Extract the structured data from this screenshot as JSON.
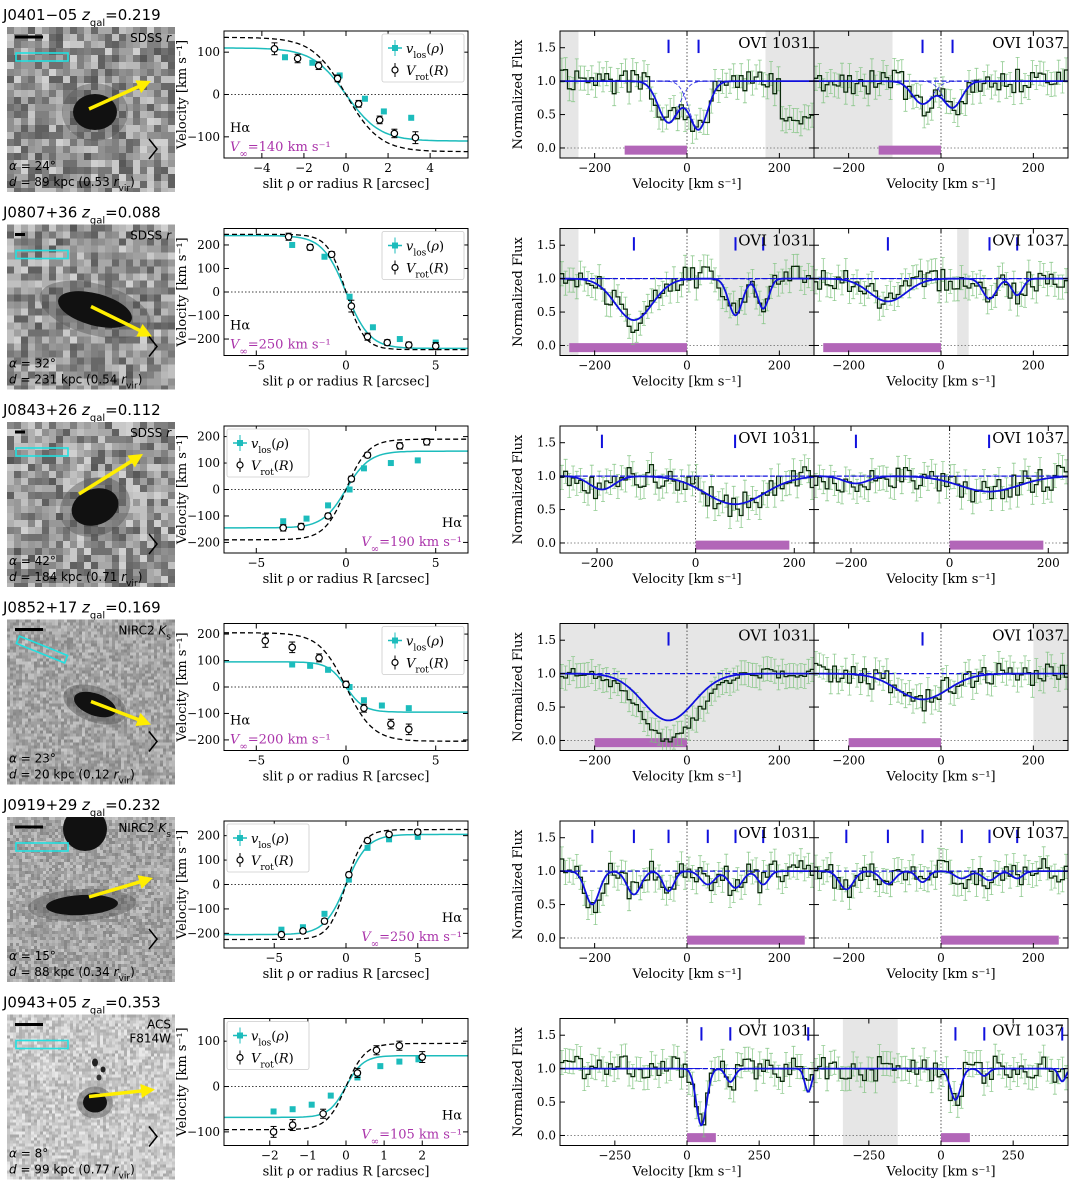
{
  "chart_data": {
    "type": "multi-panel",
    "columns": {
      "rotation_xlabel": "slit ρ or radius R [arcsec]",
      "rotation_ylabel": "Velocity [km s⁻¹]",
      "spectrum_xlabel": "Velocity [km s⁻¹]",
      "spectrum_ylabel": "Normalized Flux",
      "legend_vlos": "v_los(ρ)",
      "legend_vrot": "V_rot(R)",
      "line_label": "Hα",
      "ovi1031": "OVI 1031",
      "ovi1037": "OVI 1037"
    },
    "colors": {
      "vlos": "#1cbcbc",
      "vrot": "#000000",
      "vinf_text": "#aa33aa",
      "model": "#1010dd",
      "data_step": "#0b2a0b",
      "errorbar": "#7cc27c",
      "gray_region": "#dddddd",
      "magenta_bar": "#b266b8",
      "arrow": "#ffee00",
      "slit_box": "#22e0e0"
    },
    "rows": [
      {
        "name": "J0401−05",
        "zgal": "0.219",
        "instrument": "SDSS r",
        "alpha": "24°",
        "d": "89 kpc (0.53 r_vir)",
        "vinf": "140 km s⁻¹",
        "image_type": "sdss",
        "rot": {
          "xlim": [
            -5.8,
            5.8
          ],
          "ylim": [
            -150,
            150
          ],
          "xticks": [
            -4,
            -2,
            0,
            2,
            4
          ],
          "yticks": [
            -100,
            0,
            100
          ],
          "vlos": {
            "x": [
              -2.9,
              -1.6,
              -0.3,
              0.9,
              1.8,
              3.1
            ],
            "y": [
              88,
              75,
              45,
              -10,
              -40,
              -55
            ]
          },
          "vrot": {
            "x": [
              -3.4,
              -2.3,
              -1.3,
              -0.4,
              0.6,
              1.6,
              2.3,
              3.3
            ],
            "y": [
              108,
              85,
              68,
              38,
              -22,
              -60,
              -92,
              -102
            ],
            "err": [
              14,
              10,
              9,
              8,
              8,
              9,
              10,
              14
            ]
          },
          "model_vlos": {
            "v0": 110,
            "r0": 1.6,
            "sign": -1
          },
          "model_vrot": {
            "v0": 135,
            "r0": 1.6,
            "sign": -1
          },
          "legend_pos": "top-right",
          "label_pos": "bottom-left"
        },
        "spec": {
          "xlim": [
            -275,
            275
          ],
          "xticks": [
            -200,
            0,
            200
          ],
          "ylim": [
            -0.15,
            1.75
          ],
          "gray1031": [
            [
              -275,
              -235
            ],
            [
              170,
              275
            ]
          ],
          "gray1037": [
            [
              -275,
              -105
            ]
          ],
          "bar": [
            -135,
            0
          ],
          "ticks": [
            -40,
            25
          ],
          "components": [
            {
              "v": -40,
              "depth": 0.62,
              "sigma": 22
            },
            {
              "v": 25,
              "depth": 0.72,
              "sigma": 20
            }
          ]
        }
      },
      {
        "name": "J0807+36",
        "zgal": "0.088",
        "instrument": "SDSS r",
        "alpha": "32°",
        "d": "231 kpc (0.54 r_vir)",
        "vinf": "250 km s⁻¹",
        "image_type": "sdss",
        "rot": {
          "xlim": [
            -6.8,
            6.8
          ],
          "ylim": [
            -270,
            270
          ],
          "xticks": [
            -5,
            0,
            5
          ],
          "yticks": [
            -200,
            -100,
            0,
            100,
            200
          ],
          "vlos": {
            "x": [
              -3.0,
              -1.2,
              0.2,
              1.5,
              3.0,
              5.0
            ],
            "y": [
              200,
              150,
              -20,
              -150,
              -200,
              -215
            ]
          },
          "vrot": {
            "x": [
              -3.2,
              -2.0,
              -0.8,
              0.3,
              1.2,
              2.3,
              3.5,
              5.0
            ],
            "y": [
              235,
              190,
              160,
              -60,
              -190,
              -215,
              -225,
              -230
            ],
            "err": [
              15,
              12,
              12,
              25,
              15,
              12,
              12,
              15
            ]
          },
          "model_vlos": {
            "v0": 240,
            "r0": 1.3,
            "sign": -1
          },
          "model_vrot": {
            "v0": 245,
            "r0": 1.0,
            "sign": -1
          },
          "legend_pos": "top-right",
          "label_pos": "bottom-left"
        },
        "spec": {
          "xlim": [
            -275,
            275
          ],
          "xticks": [
            -200,
            0,
            200
          ],
          "ylim": [
            -0.15,
            1.75
          ],
          "gray1031": [
            [
              -275,
              -235
            ],
            [
              70,
              275
            ]
          ],
          "gray1037": [
            [
              35,
              60
            ]
          ],
          "bar": [
            -255,
            0
          ],
          "ticks": [
            -115,
            105,
            165
          ],
          "components": [
            {
              "v": -115,
              "depth": 0.62,
              "sigma": 40
            },
            {
              "v": 105,
              "depth": 0.55,
              "sigma": 15
            },
            {
              "v": 165,
              "depth": 0.45,
              "sigma": 12
            }
          ]
        }
      },
      {
        "name": "J0843+26",
        "zgal": "0.112",
        "instrument": "SDSS r",
        "alpha": "42°",
        "d": "184 kpc (0.71 r_vir)",
        "vinf": "190 km s⁻¹",
        "image_type": "sdss",
        "rot": {
          "xlim": [
            -6.8,
            6.8
          ],
          "ylim": [
            -240,
            240
          ],
          "xticks": [
            -5,
            0,
            5
          ],
          "yticks": [
            -200,
            -100,
            0,
            100,
            200
          ],
          "vlos": {
            "x": [
              -3.5,
              -2.2,
              -1.0,
              0.2,
              1.0,
              2.5,
              4.0
            ],
            "y": [
              -120,
              -110,
              -60,
              0,
              80,
              100,
              110
            ]
          },
          "vrot": {
            "x": [
              -3.5,
              -2.5,
              -1.0,
              0.3,
              1.2,
              3.0,
              4.5
            ],
            "y": [
              -145,
              -140,
              -100,
              40,
              130,
              165,
              180
            ],
            "err": [
              12,
              12,
              10,
              10,
              10,
              12,
              12
            ]
          },
          "model_vlos": {
            "v0": 145,
            "r0": 1.3,
            "sign": 1
          },
          "model_vrot": {
            "v0": 190,
            "r0": 1.2,
            "sign": 1
          },
          "legend_pos": "top-left",
          "label_pos": "bottom-right"
        },
        "spec": {
          "xlim": [
            -275,
            240
          ],
          "xticks": [
            -200,
            0,
            200
          ],
          "ylim": [
            -0.15,
            1.75
          ],
          "gray1031": [],
          "gray1037": [],
          "bar": [
            0,
            190
          ],
          "ticks": [
            -190,
            80
          ],
          "components": [
            {
              "v": -190,
              "depth": 0.2,
              "sigma": 25
            },
            {
              "v": 80,
              "depth": 0.42,
              "sigma": 60
            }
          ]
        }
      },
      {
        "name": "J0852+17",
        "zgal": "0.169",
        "instrument": "NIRC2 K_s",
        "alpha": "23°",
        "d": "20 kpc (0.12 r_vir)",
        "vinf": "200 km s⁻¹",
        "image_type": "nirc2",
        "rot": {
          "xlim": [
            -6.8,
            6.8
          ],
          "ylim": [
            -240,
            240
          ],
          "xticks": [
            -5,
            0,
            5
          ],
          "yticks": [
            -200,
            -100,
            0,
            100,
            200
          ],
          "vlos": {
            "x": [
              -3.0,
              -2.0,
              -1.0,
              0.2,
              1.0,
              2.0,
              3.5
            ],
            "y": [
              85,
              80,
              65,
              0,
              -50,
              -70,
              -80
            ]
          },
          "vrot": {
            "x": [
              -4.5,
              -3.0,
              -1.5,
              0.0,
              1.0,
              2.5,
              3.5
            ],
            "y": [
              175,
              150,
              110,
              10,
              -80,
              -140,
              -160
            ],
            "err": [
              25,
              20,
              15,
              12,
              15,
              18,
              20
            ]
          },
          "model_vlos": {
            "v0": 95,
            "r0": 1.0,
            "sign": -1
          },
          "model_vrot": {
            "v0": 205,
            "r0": 1.5,
            "sign": -1
          },
          "legend_pos": "top-right",
          "label_pos": "bottom-left"
        },
        "spec": {
          "xlim": [
            -275,
            275
          ],
          "xticks": [
            -200,
            0,
            200
          ],
          "ylim": [
            -0.15,
            1.75
          ],
          "gray1031": [
            [
              -275,
              275
            ]
          ],
          "gray1037": [
            [
              200,
              275
            ]
          ],
          "bar": [
            -200,
            0
          ],
          "ticks": [
            -40
          ],
          "components": [
            {
              "v": -40,
              "depth": 0.7,
              "sigma": 55
            }
          ]
        }
      },
      {
        "name": "J0919+29",
        "zgal": "0.232",
        "instrument": "NIRC2 K_s",
        "alpha": "15°",
        "d": "88 kpc (0.34 r_vir)",
        "vinf": "250 km s⁻¹",
        "image_type": "nirc2",
        "rot": {
          "xlim": [
            -8.5,
            8.5
          ],
          "ylim": [
            -260,
            260
          ],
          "xticks": [
            -5,
            0,
            5
          ],
          "yticks": [
            -200,
            -100,
            0,
            100,
            200
          ],
          "vlos": {
            "x": [
              -4.5,
              -3.0,
              -1.5,
              0.2,
              1.5,
              3.0,
              5.0
            ],
            "y": [
              -185,
              -175,
              -120,
              20,
              150,
              185,
              195
            ]
          },
          "vrot": {
            "x": [
              -4.5,
              -3.0,
              -1.5,
              0.2,
              1.5,
              3.0,
              5.0
            ],
            "y": [
              -205,
              -190,
              -150,
              40,
              180,
              205,
              215
            ],
            "err": [
              10,
              10,
              10,
              10,
              10,
              10,
              10
            ]
          },
          "model_vlos": {
            "v0": 205,
            "r0": 1.5,
            "sign": 1
          },
          "model_vrot": {
            "v0": 225,
            "r0": 1.2,
            "sign": 1
          },
          "legend_pos": "top-left",
          "label_pos": "bottom-right"
        },
        "spec": {
          "xlim": [
            -275,
            275
          ],
          "xticks": [
            -200,
            0,
            200
          ],
          "ylim": [
            -0.15,
            1.75
          ],
          "gray1031": [],
          "gray1037": [],
          "bar": [
            0,
            255
          ],
          "ticks": [
            -205,
            -115,
            -40,
            45,
            105,
            165
          ],
          "components": [
            {
              "v": -205,
              "depth": 0.5,
              "sigma": 15
            },
            {
              "v": -115,
              "depth": 0.35,
              "sigma": 15
            },
            {
              "v": -40,
              "depth": 0.3,
              "sigma": 12
            },
            {
              "v": 45,
              "depth": 0.2,
              "sigma": 15
            },
            {
              "v": 105,
              "depth": 0.25,
              "sigma": 15
            },
            {
              "v": 165,
              "depth": 0.2,
              "sigma": 12
            }
          ]
        }
      },
      {
        "name": "J0943+05",
        "zgal": "0.353",
        "instrument": "ACS F814W",
        "alpha": "8°",
        "d": "99 kpc (0.77 r_vir)",
        "vinf": "105 km s⁻¹",
        "image_type": "acs",
        "rot": {
          "xlim": [
            -3.2,
            3.2
          ],
          "ylim": [
            -130,
            150
          ],
          "xticks": [
            -2,
            -1,
            0,
            1,
            2
          ],
          "yticks": [
            -100,
            0,
            100
          ],
          "vlos": {
            "x": [
              -1.9,
              -1.4,
              -0.9,
              -0.4,
              0.3,
              0.9,
              1.4,
              1.9
            ],
            "y": [
              -55,
              -50,
              -40,
              -20,
              20,
              45,
              55,
              60
            ]
          },
          "vrot": {
            "x": [
              -1.9,
              -1.4,
              -0.6,
              0.3,
              0.8,
              1.4,
              2.0
            ],
            "y": [
              -100,
              -85,
              -60,
              30,
              80,
              90,
              65
            ],
            "err": [
              12,
              12,
              10,
              10,
              10,
              10,
              12
            ]
          },
          "model_vlos": {
            "v0": 68,
            "r0": 0.45,
            "sign": 1
          },
          "model_vrot": {
            "v0": 95,
            "r0": 0.5,
            "sign": 1
          },
          "legend_pos": "top-left",
          "label_pos": "bottom-right"
        },
        "spec": {
          "xlim": [
            -440,
            440
          ],
          "xticks": [
            -250,
            0,
            250
          ],
          "ylim": [
            -0.15,
            1.75
          ],
          "gray1031": [],
          "gray1037": [
            [
              -340,
              -150
            ]
          ],
          "bar": [
            0,
            100
          ],
          "ticks": [
            50,
            150,
            420
          ],
          "components": [
            {
              "v": 50,
              "depth": 0.85,
              "sigma": 18
            },
            {
              "v": 150,
              "depth": 0.2,
              "sigma": 15
            },
            {
              "v": 420,
              "depth": 0.35,
              "sigma": 12
            }
          ]
        }
      }
    ]
  }
}
